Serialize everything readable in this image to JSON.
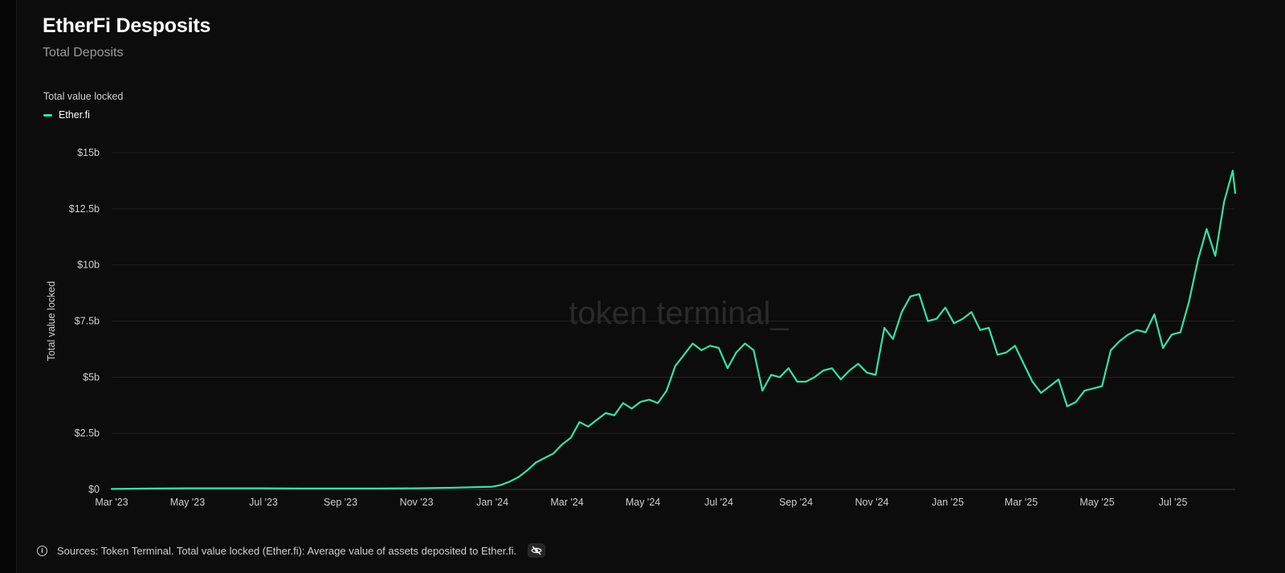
{
  "header": {
    "title": "EtherFi Desposits",
    "subtitle": "Total Deposits"
  },
  "legend": {
    "title": "Total value locked",
    "items": [
      {
        "label": "Ether.fi",
        "color": "#2ee6a6"
      }
    ]
  },
  "watermark": "token terminal_",
  "footer": {
    "sources": "Sources: Token Terminal. Total value locked (Ether.fi): Average value of assets deposited to Ether.fi.",
    "info_icon": "info-icon",
    "hide_icon": "eye-slash-icon"
  },
  "colors": {
    "background": "#0c0c0c",
    "line": "#2ee6a6",
    "grid": "#222222",
    "axis_text": "#cfcfcf"
  },
  "chart_data": {
    "type": "line",
    "title": "EtherFi Desposits",
    "subtitle": "Total Deposits",
    "ylabel": "Total value locked",
    "xlabel": "",
    "unit": "USD billions",
    "ylim": [
      0,
      15
    ],
    "yticks": [
      0,
      2.5,
      5,
      7.5,
      10,
      12.5,
      15
    ],
    "ytick_labels": [
      "$0",
      "$2.5b",
      "$5b",
      "$7.5b",
      "$10b",
      "$12.5b",
      "$15b"
    ],
    "xlim": [
      "2023-03-01",
      "2025-08-20"
    ],
    "xticks": [
      "2023-03-01",
      "2023-05-01",
      "2023-07-01",
      "2023-09-01",
      "2023-11-01",
      "2024-01-01",
      "2024-03-01",
      "2024-05-01",
      "2024-07-01",
      "2024-09-01",
      "2024-11-01",
      "2025-01-01",
      "2025-03-01",
      "2025-05-01",
      "2025-07-01"
    ],
    "xtick_labels": [
      "Mar '23",
      "May '23",
      "Jul '23",
      "Sep '23",
      "Nov '23",
      "Jan '24",
      "Mar '24",
      "May '24",
      "Jul '24",
      "Sep '24",
      "Nov '24",
      "Jan '25",
      "Mar '25",
      "May '25",
      "Jul '25"
    ],
    "grid": true,
    "legend_position": "top-left",
    "series": [
      {
        "name": "Ether.fi",
        "color": "#2ee6a6",
        "points": [
          [
            "2023-03-01",
            0.02
          ],
          [
            "2023-04-01",
            0.04
          ],
          [
            "2023-05-01",
            0.05
          ],
          [
            "2023-06-01",
            0.05
          ],
          [
            "2023-07-01",
            0.05
          ],
          [
            "2023-08-01",
            0.04
          ],
          [
            "2023-09-01",
            0.04
          ],
          [
            "2023-10-01",
            0.04
          ],
          [
            "2023-11-01",
            0.05
          ],
          [
            "2023-12-01",
            0.08
          ],
          [
            "2024-01-01",
            0.12
          ],
          [
            "2024-01-08",
            0.2
          ],
          [
            "2024-01-15",
            0.35
          ],
          [
            "2024-01-22",
            0.55
          ],
          [
            "2024-01-29",
            0.85
          ],
          [
            "2024-02-05",
            1.2
          ],
          [
            "2024-02-12",
            1.4
          ],
          [
            "2024-02-19",
            1.6
          ],
          [
            "2024-02-26",
            2.0
          ],
          [
            "2024-03-04",
            2.3
          ],
          [
            "2024-03-11",
            3.0
          ],
          [
            "2024-03-18",
            2.8
          ],
          [
            "2024-03-25",
            3.1
          ],
          [
            "2024-04-01",
            3.4
          ],
          [
            "2024-04-08",
            3.3
          ],
          [
            "2024-04-15",
            3.85
          ],
          [
            "2024-04-22",
            3.6
          ],
          [
            "2024-04-29",
            3.9
          ],
          [
            "2024-05-06",
            4.0
          ],
          [
            "2024-05-13",
            3.85
          ],
          [
            "2024-05-20",
            4.4
          ],
          [
            "2024-05-27",
            5.5
          ],
          [
            "2024-06-03",
            6.0
          ],
          [
            "2024-06-10",
            6.5
          ],
          [
            "2024-06-17",
            6.2
          ],
          [
            "2024-06-24",
            6.4
          ],
          [
            "2024-07-01",
            6.3
          ],
          [
            "2024-07-08",
            5.4
          ],
          [
            "2024-07-15",
            6.1
          ],
          [
            "2024-07-22",
            6.5
          ],
          [
            "2024-07-29",
            6.2
          ],
          [
            "2024-08-05",
            4.4
          ],
          [
            "2024-08-12",
            5.1
          ],
          [
            "2024-08-19",
            5.0
          ],
          [
            "2024-08-26",
            5.4
          ],
          [
            "2024-09-02",
            4.8
          ],
          [
            "2024-09-09",
            4.8
          ],
          [
            "2024-09-16",
            5.0
          ],
          [
            "2024-09-23",
            5.3
          ],
          [
            "2024-09-30",
            5.4
          ],
          [
            "2024-10-07",
            4.9
          ],
          [
            "2024-10-14",
            5.3
          ],
          [
            "2024-10-21",
            5.6
          ],
          [
            "2024-10-28",
            5.2
          ],
          [
            "2024-11-04",
            5.1
          ],
          [
            "2024-11-11",
            7.2
          ],
          [
            "2024-11-18",
            6.7
          ],
          [
            "2024-11-25",
            7.9
          ],
          [
            "2024-12-02",
            8.6
          ],
          [
            "2024-12-09",
            8.7
          ],
          [
            "2024-12-16",
            7.5
          ],
          [
            "2024-12-23",
            7.6
          ],
          [
            "2024-12-30",
            8.1
          ],
          [
            "2025-01-06",
            7.4
          ],
          [
            "2025-01-13",
            7.6
          ],
          [
            "2025-01-20",
            7.9
          ],
          [
            "2025-01-27",
            7.1
          ],
          [
            "2025-02-03",
            7.2
          ],
          [
            "2025-02-10",
            6.0
          ],
          [
            "2025-02-17",
            6.1
          ],
          [
            "2025-02-24",
            6.4
          ],
          [
            "2025-03-03",
            5.6
          ],
          [
            "2025-03-10",
            4.8
          ],
          [
            "2025-03-17",
            4.3
          ],
          [
            "2025-03-24",
            4.6
          ],
          [
            "2025-03-31",
            4.9
          ],
          [
            "2025-04-07",
            3.7
          ],
          [
            "2025-04-14",
            3.9
          ],
          [
            "2025-04-21",
            4.4
          ],
          [
            "2025-04-28",
            4.5
          ],
          [
            "2025-05-05",
            4.6
          ],
          [
            "2025-05-12",
            6.2
          ],
          [
            "2025-05-19",
            6.6
          ],
          [
            "2025-05-26",
            6.9
          ],
          [
            "2025-06-02",
            7.1
          ],
          [
            "2025-06-09",
            7.0
          ],
          [
            "2025-06-16",
            7.8
          ],
          [
            "2025-06-23",
            6.3
          ],
          [
            "2025-06-30",
            6.9
          ],
          [
            "2025-07-07",
            7.0
          ],
          [
            "2025-07-14",
            8.4
          ],
          [
            "2025-07-21",
            10.2
          ],
          [
            "2025-07-28",
            11.6
          ],
          [
            "2025-08-04",
            10.4
          ],
          [
            "2025-08-11",
            12.8
          ],
          [
            "2025-08-18",
            14.2
          ],
          [
            "2025-08-20",
            13.2
          ]
        ]
      }
    ]
  }
}
